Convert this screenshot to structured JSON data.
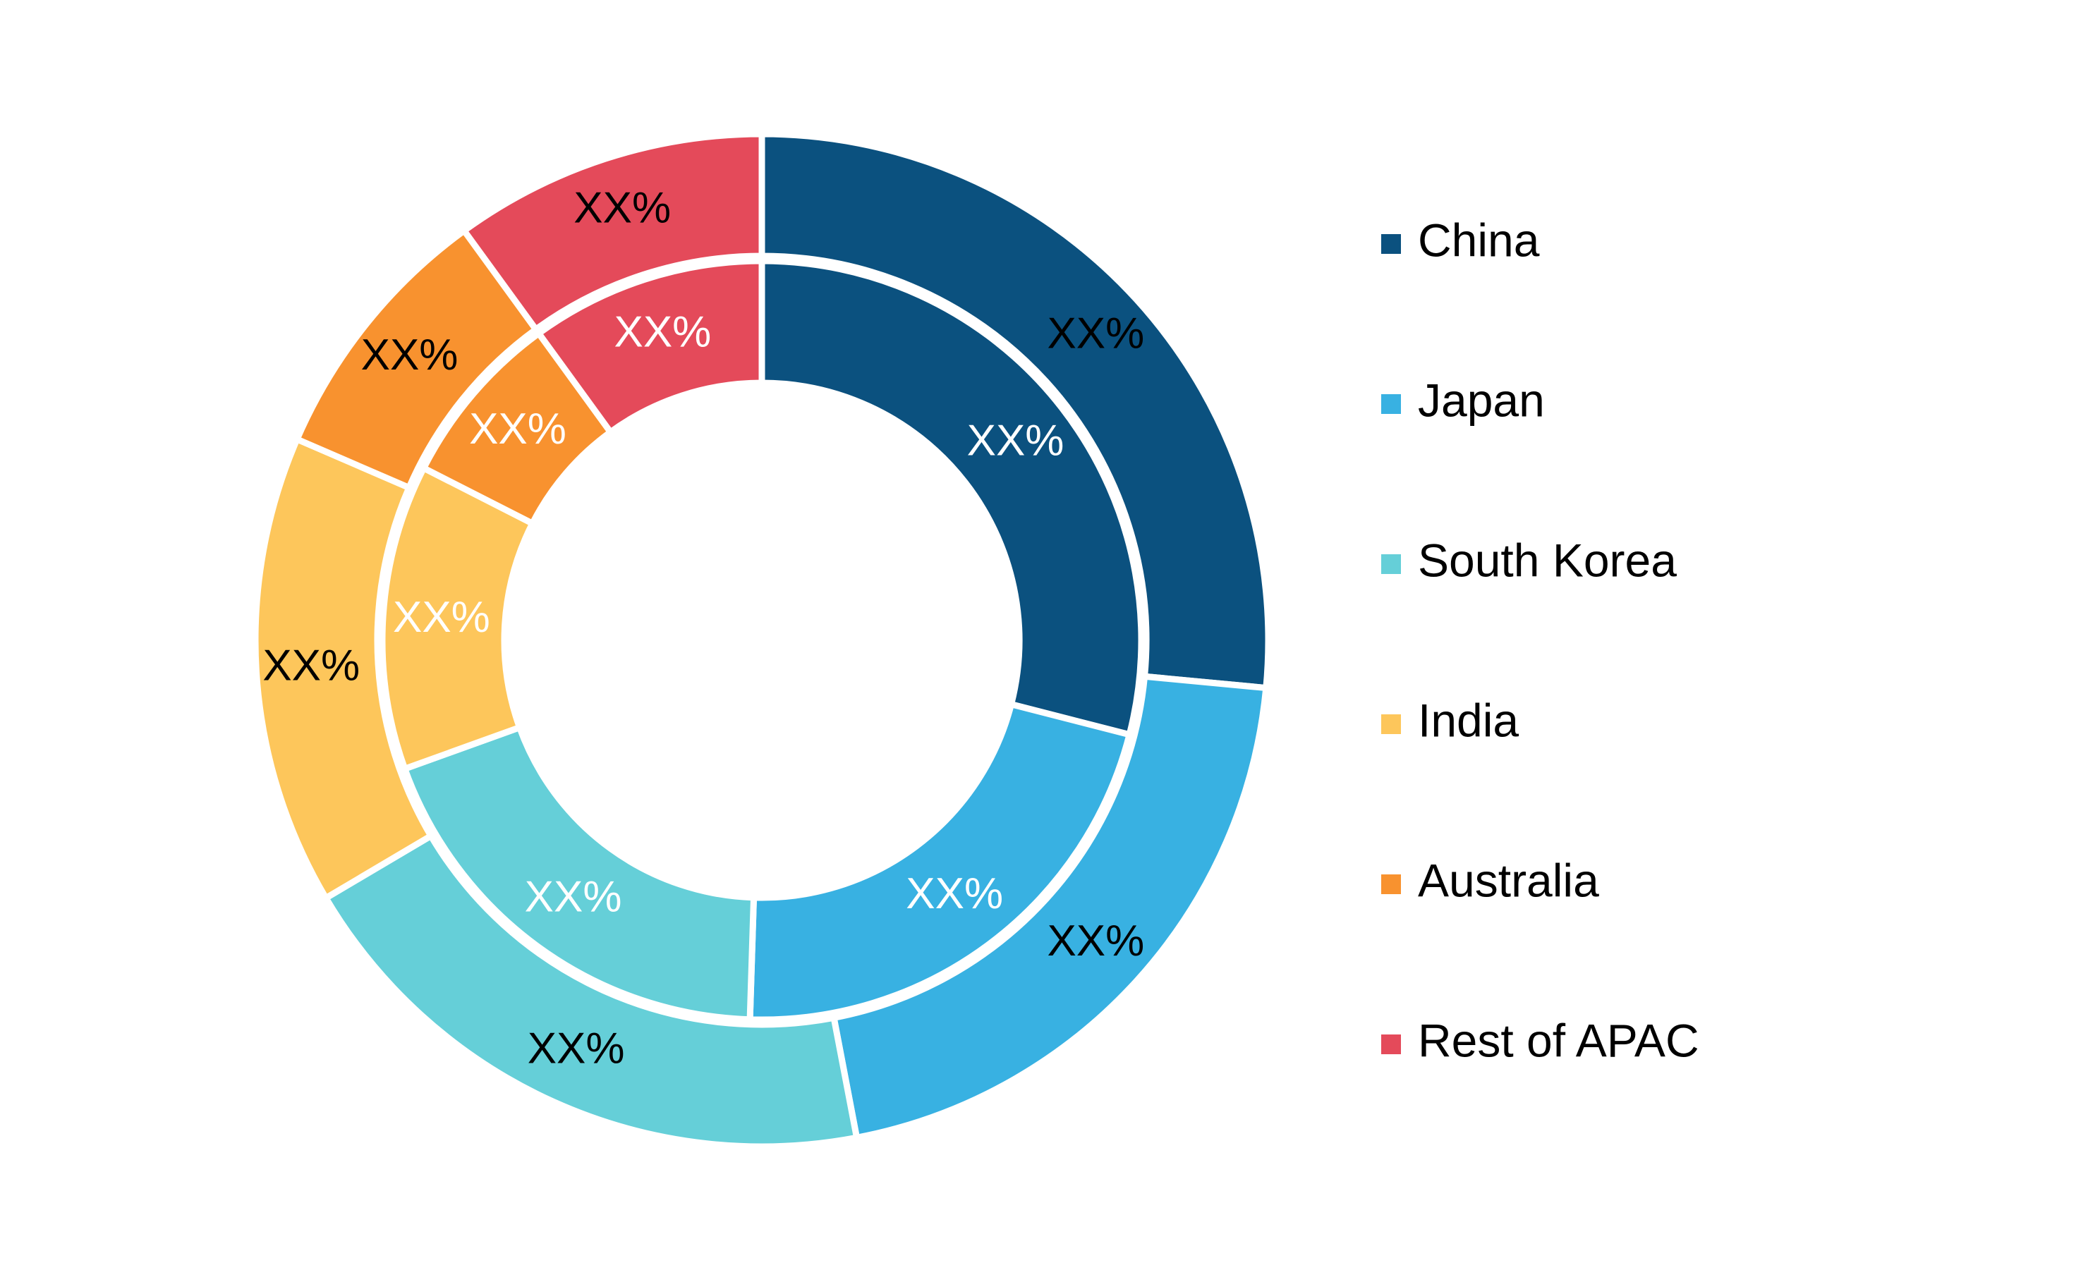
{
  "chart_data": {
    "type": "pie",
    "style": "nested-donut",
    "categories": [
      "China",
      "Japan",
      "South Korea",
      "India",
      "Australia",
      "Rest of APAC"
    ],
    "colors": [
      "#0b517f",
      "#38b1e2",
      "#65cfd8",
      "#fdc65b",
      "#f8922f",
      "#e44a5a"
    ],
    "legend_position": "right",
    "series": [
      {
        "ring": "outer",
        "values": [
          26.5,
          20.5,
          19.5,
          15.0,
          8.5,
          10.0
        ],
        "labels": [
          "XX%",
          "XX%",
          "XX%",
          "XX%",
          "XX%",
          "XX%"
        ]
      },
      {
        "ring": "inner",
        "values": [
          29.0,
          21.5,
          19.0,
          13.0,
          7.5,
          10.0
        ],
        "labels": [
          "XX%",
          "XX%",
          "XX%",
          "XX%",
          "XX%",
          "XX%"
        ]
      }
    ],
    "label_colors": {
      "outer": "#000000",
      "inner": "#ffffff"
    }
  },
  "legend": {
    "items": [
      {
        "label": "China"
      },
      {
        "label": "Japan"
      },
      {
        "label": "South Korea"
      },
      {
        "label": "India"
      },
      {
        "label": "Australia"
      },
      {
        "label": "Rest of APAC"
      }
    ]
  }
}
